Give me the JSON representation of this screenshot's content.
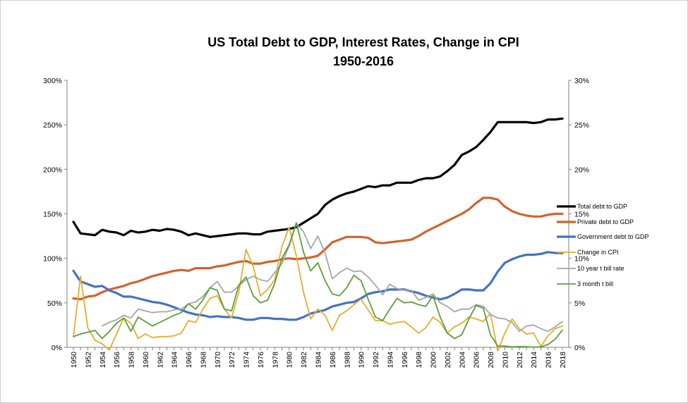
{
  "chart_data": {
    "type": "line",
    "title": "US Total Debt to GDP, Interest Rates, Change in CPI",
    "subtitle": "1950-2016",
    "x": [
      1950,
      1951,
      1952,
      1953,
      1954,
      1955,
      1956,
      1957,
      1958,
      1959,
      1960,
      1961,
      1962,
      1963,
      1964,
      1965,
      1966,
      1967,
      1968,
      1969,
      1970,
      1971,
      1972,
      1973,
      1974,
      1975,
      1976,
      1977,
      1978,
      1979,
      1980,
      1981,
      1982,
      1983,
      1984,
      1985,
      1986,
      1987,
      1988,
      1989,
      1990,
      1991,
      1992,
      1993,
      1994,
      1995,
      1996,
      1997,
      1998,
      1999,
      2000,
      2001,
      2002,
      2003,
      2004,
      2005,
      2006,
      2007,
      2008,
      2009,
      2010,
      2011,
      2012,
      2013,
      2014,
      2015,
      2016,
      2017,
      2018
    ],
    "x_tick_labels": [
      "1950",
      "1952",
      "1954",
      "1956",
      "1958",
      "1960",
      "1962",
      "1964",
      "1966",
      "1968",
      "1970",
      "1972",
      "1974",
      "1976",
      "1978",
      "1980",
      "1982",
      "1984",
      "1986",
      "1988",
      "1990",
      "1992",
      "1994",
      "1996",
      "1998",
      "2000",
      "2002",
      "2004",
      "2006",
      "2008",
      "2010",
      "2012",
      "2014",
      "2016",
      "2018"
    ],
    "y_left": {
      "range": [
        0,
        300
      ],
      "ticks": [
        "0%",
        "50%",
        "100%",
        "150%",
        "200%",
        "250%",
        "300%"
      ]
    },
    "y_right": {
      "range": [
        0,
        30
      ],
      "ticks": [
        "0%",
        "5%",
        "10%",
        "15%",
        "20%",
        "25%",
        "30%"
      ]
    },
    "grid": false,
    "legend_position": "right",
    "series": [
      {
        "name": "Total debt to GDP",
        "axis": "left",
        "color": "#000000",
        "width": 3.2,
        "values": [
          141,
          128,
          127,
          126,
          132,
          130,
          129,
          126,
          131,
          129,
          130,
          132,
          131,
          133,
          132,
          130,
          126,
          128,
          126,
          124,
          125,
          126,
          127,
          128,
          128,
          127,
          127,
          130,
          131,
          132,
          133,
          135,
          140,
          145,
          150,
          160,
          166,
          170,
          173,
          175,
          178,
          181,
          180,
          182,
          182,
          185,
          185,
          185,
          188,
          190,
          190,
          192,
          198,
          205,
          216,
          220,
          225,
          233,
          242,
          253,
          253,
          253,
          253,
          253,
          252,
          253,
          256,
          256,
          257
        ]
      },
      {
        "name": "Private debt to GDP",
        "axis": "left",
        "color": "#d4622b",
        "width": 3.2,
        "values": [
          55,
          54,
          57,
          58,
          62,
          65,
          67,
          69,
          72,
          74,
          77,
          80,
          82,
          84,
          86,
          87,
          86,
          89,
          89,
          89,
          91,
          92,
          94,
          96,
          97,
          94,
          94,
          96,
          97,
          99,
          100,
          99,
          100,
          101,
          103,
          110,
          118,
          121,
          124,
          124,
          124,
          123,
          118,
          117,
          118,
          119,
          120,
          121,
          125,
          130,
          134,
          138,
          142,
          146,
          150,
          155,
          162,
          168,
          168,
          166,
          158,
          153,
          150,
          148,
          147,
          147,
          149,
          150,
          150
        ]
      },
      {
        "name": "Government debt to GDP",
        "axis": "left",
        "color": "#4472c4",
        "width": 3.2,
        "values": [
          86,
          74,
          71,
          68,
          69,
          64,
          61,
          57,
          57,
          55,
          53,
          51,
          50,
          48,
          45,
          42,
          39,
          37,
          36,
          34,
          35,
          34,
          34,
          33,
          31,
          31,
          33,
          33,
          32,
          32,
          31,
          31,
          34,
          38,
          40,
          42,
          46,
          48,
          50,
          51,
          55,
          60,
          62,
          63,
          65,
          65,
          65,
          63,
          61,
          58,
          56,
          54,
          56,
          60,
          65,
          65,
          64,
          64,
          72,
          85,
          95,
          99,
          102,
          104,
          104,
          105,
          107,
          106,
          106
        ]
      },
      {
        "name": "Change in CPI",
        "axis": "right",
        "color": "#e5ad2e",
        "width": 1.8,
        "values": [
          1.2,
          8.0,
          2.2,
          0.8,
          0.4,
          -0.3,
          1.5,
          3.3,
          2.7,
          1.0,
          1.5,
          1.1,
          1.2,
          1.2,
          1.3,
          1.6,
          3.0,
          2.8,
          4.3,
          5.5,
          5.8,
          4.3,
          3.3,
          6.2,
          11.0,
          9.1,
          5.8,
          6.5,
          7.6,
          11.3,
          13.5,
          10.3,
          6.2,
          3.2,
          4.3,
          3.6,
          1.9,
          3.6,
          4.1,
          4.8,
          5.4,
          4.2,
          3.0,
          3.0,
          2.6,
          2.8,
          2.9,
          2.3,
          1.6,
          2.2,
          3.4,
          2.8,
          1.6,
          2.3,
          2.7,
          3.4,
          3.2,
          2.9,
          3.8,
          -0.4,
          1.6,
          3.2,
          2.1,
          1.5,
          1.6,
          0.1,
          1.3,
          2.1,
          2.4
        ]
      },
      {
        "name": "10 year t bill rate",
        "axis": "right",
        "color": "#a6a6a6",
        "width": 1.8,
        "values": [
          null,
          null,
          null,
          null,
          2.4,
          2.8,
          3.1,
          3.6,
          3.3,
          4.3,
          4.1,
          3.9,
          4.0,
          4.0,
          4.2,
          4.3,
          4.9,
          5.1,
          5.7,
          6.7,
          7.4,
          6.2,
          6.2,
          6.9,
          7.6,
          8.0,
          7.6,
          7.4,
          8.4,
          9.4,
          11.4,
          13.9,
          13.0,
          11.1,
          12.5,
          10.6,
          7.7,
          8.4,
          8.9,
          8.5,
          8.6,
          7.9,
          7.0,
          5.9,
          7.1,
          6.6,
          6.4,
          6.4,
          5.3,
          5.6,
          6.0,
          5.0,
          4.6,
          4.0,
          4.3,
          4.3,
          4.8,
          4.6,
          3.7,
          3.3,
          3.2,
          2.8,
          1.8,
          2.4,
          2.5,
          2.1,
          1.8,
          2.3,
          2.9
        ]
      },
      {
        "name": "3 month t bill",
        "axis": "right",
        "color": "#5c9e3c",
        "width": 1.8,
        "values": [
          1.2,
          1.5,
          1.7,
          1.9,
          1.0,
          1.8,
          2.7,
          3.3,
          1.8,
          3.4,
          2.9,
          2.4,
          2.8,
          3.2,
          3.6,
          3.9,
          4.9,
          4.3,
          5.3,
          6.7,
          6.4,
          4.3,
          4.1,
          7.0,
          7.9,
          5.8,
          5.0,
          5.3,
          7.2,
          10.0,
          11.5,
          14.0,
          10.7,
          8.6,
          9.5,
          7.5,
          6.0,
          5.8,
          6.7,
          8.1,
          7.5,
          5.4,
          3.4,
          3.0,
          4.3,
          5.5,
          5.0,
          5.1,
          4.8,
          4.6,
          5.8,
          3.4,
          1.6,
          1.0,
          1.4,
          3.2,
          4.7,
          4.4,
          1.4,
          0.15,
          0.14,
          0.05,
          0.09,
          0.06,
          0.03,
          0.05,
          0.32,
          0.93,
          1.94
        ]
      }
    ]
  }
}
